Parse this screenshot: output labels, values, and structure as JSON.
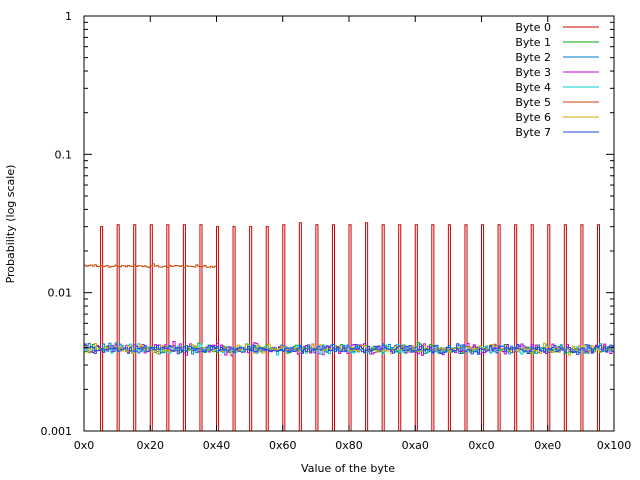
{
  "chart_data": {
    "type": "line",
    "title": "",
    "xlabel": "Value of the byte",
    "ylabel": "Probability (log scale)",
    "xlim": [
      0,
      256
    ],
    "ylim": [
      0.001,
      1
    ],
    "yscale": "log",
    "grid": false,
    "legend_position": "top-right",
    "x_ticks": [
      {
        "value": 0,
        "label": "0x0"
      },
      {
        "value": 32,
        "label": "0x20"
      },
      {
        "value": 64,
        "label": "0x40"
      },
      {
        "value": 96,
        "label": "0x60"
      },
      {
        "value": 128,
        "label": "0x80"
      },
      {
        "value": 160,
        "label": "0xa0"
      },
      {
        "value": 192,
        "label": "0xc0"
      },
      {
        "value": 224,
        "label": "0xe0"
      },
      {
        "value": 256,
        "label": "0x100"
      }
    ],
    "y_ticks": [
      {
        "value": 1,
        "label": "1"
      },
      {
        "value": 0.1,
        "label": "0.1"
      },
      {
        "value": 0.01,
        "label": "0.01"
      },
      {
        "value": 0.001,
        "label": "0.001"
      }
    ],
    "series": [
      {
        "name": "Byte 0",
        "color": "#cc0000",
        "description": "step histogram; spikes at every byte value divisible by 8, near-zero elsewhere",
        "spike_x": [
          8,
          16,
          24,
          32,
          40,
          48,
          56,
          64,
          72,
          80,
          88,
          96,
          104,
          112,
          120,
          128,
          136,
          144,
          152,
          160,
          168,
          176,
          184,
          192,
          200,
          208,
          216,
          224,
          232,
          240,
          248
        ],
        "spike_y": [
          0.03,
          0.031,
          0.031,
          0.031,
          0.031,
          0.031,
          0.031,
          0.03,
          0.03,
          0.03,
          0.03,
          0.031,
          0.032,
          0.031,
          0.031,
          0.031,
          0.032,
          0.031,
          0.031,
          0.031,
          0.031,
          0.031,
          0.031,
          0.031,
          0.031,
          0.031,
          0.031,
          0.031,
          0.031,
          0.031,
          0.031
        ],
        "floor_y": 0.001
      },
      {
        "name": "Byte 1",
        "color": "#00aa00",
        "description": "roughly uniform across 0x0-0xff",
        "mean_y": 0.0039,
        "range_y": [
          0.0035,
          0.0044
        ]
      },
      {
        "name": "Byte 2",
        "color": "#0077cc",
        "description": "roughly uniform across 0x0-0xff",
        "mean_y": 0.0039,
        "range_y": [
          0.0035,
          0.0044
        ]
      },
      {
        "name": "Byte 3",
        "color": "#cc00cc",
        "description": "roughly uniform across 0x0-0xff",
        "mean_y": 0.0039,
        "range_y": [
          0.0034,
          0.0045
        ]
      },
      {
        "name": "Byte 4",
        "color": "#00cccc",
        "description": "roughly uniform across 0x0-0xff",
        "mean_y": 0.0039,
        "range_y": [
          0.0035,
          0.0044
        ]
      },
      {
        "name": "Byte 5",
        "color": "#cc4400",
        "description": "only values 0x0-0x3f occur, roughly uniform",
        "x_range": [
          0,
          64
        ],
        "mean_y": 0.0156,
        "range_y": [
          0.015,
          0.0163
        ]
      },
      {
        "name": "Byte 6",
        "color": "#ccaa00",
        "description": "roughly uniform across 0x0-0xff",
        "mean_y": 0.0039,
        "range_y": [
          0.0035,
          0.0044
        ]
      },
      {
        "name": "Byte 7",
        "color": "#2244ee",
        "description": "roughly uniform across 0x0-0xff",
        "mean_y": 0.0039,
        "range_y": [
          0.0035,
          0.0044
        ]
      }
    ]
  }
}
